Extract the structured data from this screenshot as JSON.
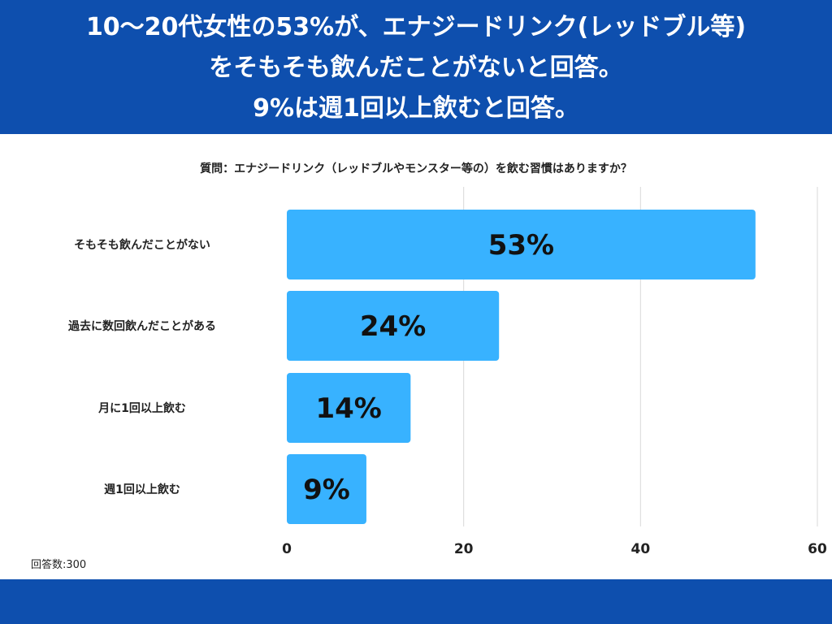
{
  "header": {
    "lines": [
      "10〜20代女性の53%が、エナジードリンク(レッドブル等)",
      "をそもそも飲んだことがないと回答。",
      "9%は週1回以上飲むと回答。"
    ]
  },
  "question": "質問：エナジードリンク（レッドブルやモンスター等の）を飲む習慣はありますか？",
  "chart_data": {
    "type": "bar",
    "orientation": "horizontal",
    "categories": [
      "そもそも飲んだことがない",
      "過去に数回飲んだことがある",
      "月に1回以上飲む",
      "週1回以上飲む"
    ],
    "values": [
      53,
      24,
      14,
      9
    ],
    "data_labels": [
      "53%",
      "24%",
      "14%",
      "9%"
    ],
    "xlim": [
      0,
      60
    ],
    "xticks": [
      0,
      20,
      40,
      60
    ],
    "xtick_labels": [
      "0",
      "20",
      "40",
      "60"
    ],
    "grid": true,
    "bar_color": "#38b2ff",
    "title": "",
    "xlabel": "",
    "ylabel": ""
  },
  "footer": {
    "respondents": "回答数:300"
  },
  "colors": {
    "brand_blue": "#0e4fae",
    "bar": "#38b2ff",
    "grid": "#d9d9d9"
  }
}
